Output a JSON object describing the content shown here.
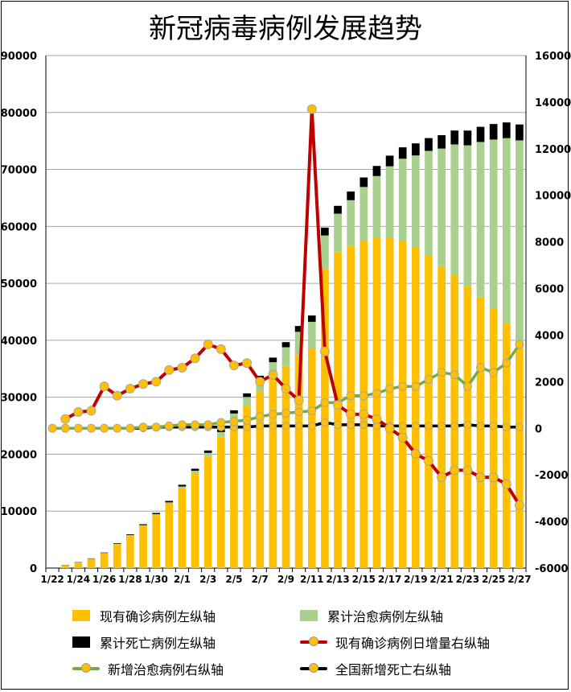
{
  "title": "新冠病毒病例发展趋势",
  "colors": {
    "confirmed": "#ffc000",
    "cured": "#a9d18e",
    "deaths": "#000000",
    "daily_change": "#c00000",
    "new_cured": "#70ad47",
    "new_deaths": "#000000",
    "marker": "#ffc000",
    "grid": "#a6a6a6"
  },
  "legend": [
    {
      "key": "confirmed",
      "label": "现有确诊病例左纵轴",
      "kind": "box"
    },
    {
      "key": "cured",
      "label": "累计治愈病例左纵轴",
      "kind": "box"
    },
    {
      "key": "deaths",
      "label": "累计死亡病例左纵轴",
      "kind": "box"
    },
    {
      "key": "daily_change",
      "label": "现有确诊病例日增量右纵轴",
      "kind": "line"
    },
    {
      "key": "new_cured",
      "label": "新增治愈病例右纵轴",
      "kind": "line"
    },
    {
      "key": "new_deaths",
      "label": "全国新增死亡右纵轴",
      "kind": "line"
    }
  ],
  "chart_data": {
    "type": "bar",
    "title": "新冠病毒病例发展趋势",
    "x": [
      "1/22",
      "1/23",
      "1/24",
      "1/25",
      "1/26",
      "1/27",
      "1/28",
      "1/29",
      "1/30",
      "1/31",
      "2/1",
      "2/2",
      "2/3",
      "2/4",
      "2/5",
      "2/6",
      "2/7",
      "2/8",
      "2/9",
      "2/10",
      "2/11",
      "2/12",
      "2/13",
      "2/14",
      "2/15",
      "2/16",
      "2/17",
      "2/18",
      "2/19",
      "2/20",
      "2/21",
      "2/22",
      "2/23",
      "2/24",
      "2/25",
      "2/26",
      "2/27"
    ],
    "x_tick_labels": [
      "1/22",
      "1/24",
      "1/26",
      "1/28",
      "1/30",
      "2/1",
      "2/3",
      "2/5",
      "2/7",
      "2/9",
      "2/11",
      "2/13",
      "2/15",
      "2/17",
      "2/19",
      "2/21",
      "2/23",
      "2/25",
      "2/27"
    ],
    "y_left": {
      "min": 0,
      "max": 90000,
      "ticks": [
        0,
        10000,
        20000,
        30000,
        40000,
        50000,
        60000,
        70000,
        80000,
        90000
      ]
    },
    "y_right": {
      "min": -6000,
      "max": 16000,
      "ticks": [
        -6000,
        -4000,
        -2000,
        0,
        2000,
        4000,
        6000,
        8000,
        10000,
        12000,
        14000,
        16000
      ]
    },
    "grid": true,
    "legend_position": "bottom",
    "bar_stack": [
      {
        "name": "现有确诊病例左纵轴",
        "axis": "left",
        "values": [
          0,
          500,
          1000,
          1600,
          2600,
          4200,
          5700,
          7400,
          9300,
          11300,
          14000,
          16600,
          19600,
          23000,
          26000,
          28500,
          31000,
          33500,
          35500,
          37500,
          38500,
          52500,
          55500,
          56500,
          57500,
          58000,
          58000,
          57500,
          56300,
          55000,
          53000,
          51500,
          49500,
          47500,
          45500,
          43000,
          39000
        ]
      },
      {
        "name": "累计治愈病例左纵轴",
        "axis": "left",
        "values": [
          0,
          30,
          40,
          50,
          50,
          60,
          100,
          130,
          170,
          240,
          330,
          490,
          630,
          890,
          1150,
          1540,
          2050,
          2650,
          3280,
          3990,
          4740,
          5910,
          6730,
          8100,
          9420,
          10840,
          12550,
          14380,
          16150,
          18260,
          20660,
          22890,
          24730,
          27320,
          29750,
          32500,
          36100
        ]
      },
      {
        "name": "累计死亡病例左纵轴",
        "axis": "left",
        "values": [
          0,
          30,
          40,
          60,
          80,
          110,
          130,
          170,
          210,
          260,
          300,
          360,
          420,
          490,
          560,
          640,
          720,
          810,
          900,
          1020,
          1110,
          1370,
          1380,
          1520,
          1670,
          1770,
          1870,
          2000,
          2120,
          2240,
          2350,
          2440,
          2590,
          2660,
          2720,
          2750,
          2790
        ]
      }
    ],
    "lines": [
      {
        "name": "现有确诊病例日增量右纵轴",
        "axis": "right",
        "values": [
          null,
          400,
          700,
          750,
          1800,
          1400,
          1700,
          1900,
          2000,
          2500,
          2600,
          3000,
          3600,
          3400,
          2700,
          2800,
          2000,
          2300,
          1700,
          1200,
          13700,
          3300,
          1000,
          600,
          600,
          400,
          0,
          -400,
          -1100,
          -1400,
          -2100,
          -1800,
          -1800,
          -2100,
          -2100,
          -2400,
          -3300
        ]
      },
      {
        "name": "新增治愈病例右纵轴",
        "axis": "right",
        "values": [
          0,
          0,
          0,
          0,
          0,
          0,
          0,
          50,
          50,
          100,
          150,
          150,
          150,
          250,
          300,
          350,
          500,
          600,
          650,
          700,
          750,
          1100,
          1100,
          1400,
          1400,
          1500,
          1700,
          1800,
          1800,
          2100,
          2400,
          2300,
          1800,
          2600,
          2400,
          2800,
          3600
        ]
      },
      {
        "name": "全国新增死亡右纵轴",
        "axis": "right",
        "values": [
          0,
          0,
          0,
          0,
          0,
          0,
          0,
          0,
          50,
          50,
          50,
          50,
          50,
          50,
          50,
          50,
          100,
          100,
          100,
          100,
          100,
          250,
          150,
          150,
          150,
          100,
          100,
          100,
          100,
          100,
          100,
          100,
          150,
          100,
          100,
          50,
          50
        ]
      }
    ]
  }
}
